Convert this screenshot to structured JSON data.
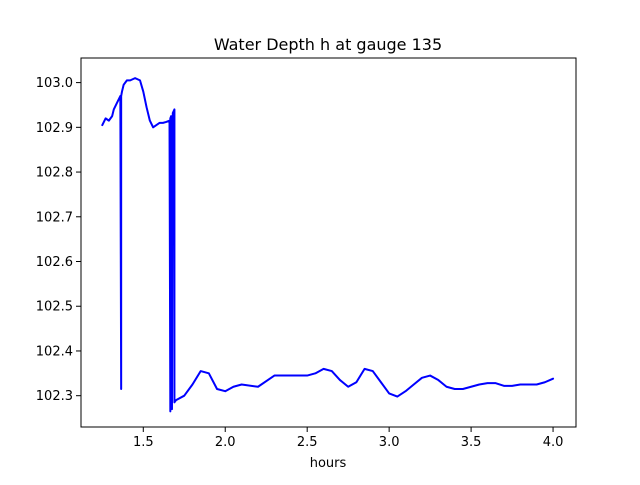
{
  "chart_data": {
    "type": "line",
    "title": "Water Depth h at gauge 135",
    "xlabel": "hours",
    "ylabel": "",
    "xlim": [
      1.12,
      4.14
    ],
    "ylim": [
      102.23,
      103.055
    ],
    "x_ticks": [
      {
        "value": 1.5,
        "label": "1.5"
      },
      {
        "value": 2.0,
        "label": "2.0"
      },
      {
        "value": 2.5,
        "label": "2.5"
      },
      {
        "value": 3.0,
        "label": "3.0"
      },
      {
        "value": 3.5,
        "label": "3.5"
      },
      {
        "value": 4.0,
        "label": "4.0"
      }
    ],
    "y_ticks": [
      {
        "value": 102.3,
        "label": "102.3"
      },
      {
        "value": 102.4,
        "label": "102.4"
      },
      {
        "value": 102.5,
        "label": "102.5"
      },
      {
        "value": 102.6,
        "label": "102.6"
      },
      {
        "value": 102.7,
        "label": "102.7"
      },
      {
        "value": 102.8,
        "label": "102.8"
      },
      {
        "value": 102.9,
        "label": "102.9"
      },
      {
        "value": 103.0,
        "label": "103.0"
      }
    ],
    "grid": false,
    "legend": "none",
    "series": [
      {
        "color": "#0000ff",
        "x": [
          1.25,
          1.27,
          1.29,
          1.31,
          1.32,
          1.34,
          1.36,
          1.365,
          1.365,
          1.37,
          1.38,
          1.4,
          1.42,
          1.45,
          1.48,
          1.5,
          1.52,
          1.54,
          1.56,
          1.58,
          1.6,
          1.62,
          1.64,
          1.66,
          1.665,
          1.665,
          1.67,
          1.675,
          1.68,
          1.69,
          1.69,
          1.695,
          1.7,
          1.75,
          1.8,
          1.85,
          1.9,
          1.95,
          2.0,
          2.05,
          2.1,
          2.2,
          2.3,
          2.4,
          2.5,
          2.55,
          2.6,
          2.65,
          2.7,
          2.75,
          2.8,
          2.85,
          2.9,
          2.95,
          3.0,
          3.05,
          3.1,
          3.15,
          3.2,
          3.25,
          3.3,
          3.35,
          3.4,
          3.45,
          3.5,
          3.55,
          3.6,
          3.65,
          3.7,
          3.75,
          3.8,
          3.85,
          3.9,
          3.95,
          4.0
        ],
        "y": [
          102.905,
          102.92,
          102.915,
          102.925,
          102.94,
          102.955,
          102.97,
          102.315,
          102.97,
          102.98,
          102.995,
          103.005,
          103.005,
          103.01,
          103.005,
          102.98,
          102.945,
          102.915,
          102.9,
          102.905,
          102.91,
          102.91,
          102.912,
          102.915,
          102.265,
          102.92,
          102.925,
          102.27,
          102.932,
          102.94,
          102.285,
          102.288,
          102.29,
          102.3,
          102.325,
          102.355,
          102.35,
          102.315,
          102.31,
          102.32,
          102.325,
          102.32,
          102.345,
          102.345,
          102.345,
          102.35,
          102.36,
          102.355,
          102.335,
          102.32,
          102.33,
          102.36,
          102.355,
          102.33,
          102.305,
          102.298,
          102.31,
          102.325,
          102.34,
          102.345,
          102.335,
          102.32,
          102.315,
          102.315,
          102.32,
          102.325,
          102.328,
          102.328,
          102.322,
          102.322,
          102.325,
          102.325,
          102.325,
          102.33,
          102.338
        ]
      }
    ]
  }
}
